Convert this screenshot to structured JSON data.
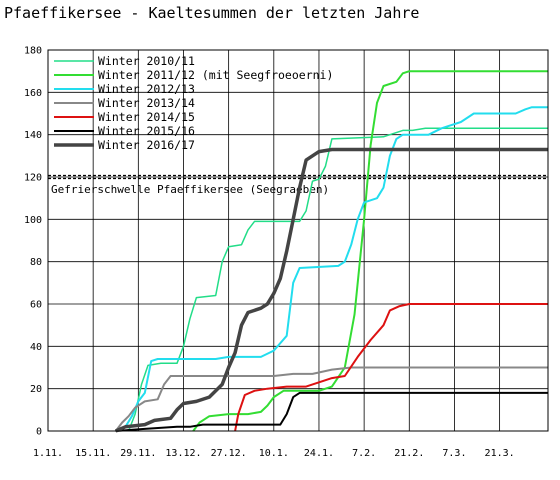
{
  "chart_data": {
    "type": "line",
    "title": "Pfaeffikersee - Kaeltesummen der letzten Jahre",
    "xlabel": "",
    "ylabel": "",
    "ylim": [
      0,
      180
    ],
    "yticks": [
      0,
      20,
      40,
      60,
      80,
      100,
      120,
      140,
      160,
      180
    ],
    "x_unit": "days since 1 November",
    "xlim": [
      0,
      155
    ],
    "xtick_labels": [
      "1.11.",
      "15.11.",
      "29.11.",
      "13.12.",
      "27.12.",
      "10.1.",
      "24.1.",
      "7.2.",
      "21.2.",
      "7.3.",
      "21.3."
    ],
    "xtick_values": [
      0,
      14,
      28,
      42,
      56,
      70,
      84,
      98,
      112,
      126,
      140
    ],
    "grid": true,
    "legend_position": "top-left",
    "threshold": {
      "value": 120,
      "label": "Gefrierschwelle Pfaeffikersee (Seegraeben)",
      "color": "#000000"
    },
    "series": [
      {
        "name": "Winter 2010/11",
        "color": "#22dd88",
        "width": 1.5,
        "points": [
          [
            25,
            0
          ],
          [
            27,
            8
          ],
          [
            29,
            22
          ],
          [
            31,
            31
          ],
          [
            35,
            32
          ],
          [
            40,
            32
          ],
          [
            42,
            40
          ],
          [
            44,
            53
          ],
          [
            46,
            63
          ],
          [
            52,
            64
          ],
          [
            54,
            80
          ],
          [
            56,
            87
          ],
          [
            60,
            88
          ],
          [
            62,
            95
          ],
          [
            64,
            99
          ],
          [
            78,
            99
          ],
          [
            80,
            104
          ],
          [
            82,
            118
          ],
          [
            84,
            119
          ],
          [
            86,
            125
          ],
          [
            88,
            138
          ],
          [
            104,
            139
          ],
          [
            106,
            140
          ],
          [
            110,
            142
          ],
          [
            113,
            142
          ],
          [
            117,
            143
          ],
          [
            155,
            143
          ]
        ]
      },
      {
        "name": "Winter 2011/12 (mit Seegfroeoerni)",
        "color": "#33dd33",
        "width": 2,
        "points": [
          [
            45,
            0
          ],
          [
            47,
            4
          ],
          [
            50,
            7
          ],
          [
            56,
            8
          ],
          [
            62,
            8
          ],
          [
            66,
            9
          ],
          [
            68,
            12
          ],
          [
            70,
            16
          ],
          [
            73,
            19
          ],
          [
            84,
            19
          ],
          [
            88,
            21
          ],
          [
            92,
            30
          ],
          [
            95,
            55
          ],
          [
            98,
            100
          ],
          [
            100,
            135
          ],
          [
            102,
            155
          ],
          [
            104,
            163
          ],
          [
            108,
            165
          ],
          [
            110,
            169
          ],
          [
            112,
            170
          ],
          [
            155,
            170
          ]
        ]
      },
      {
        "name": "Winter 2012/13",
        "color": "#22ddee",
        "width": 2,
        "points": [
          [
            21,
            0
          ],
          [
            24,
            2
          ],
          [
            26,
            7
          ],
          [
            28,
            14
          ],
          [
            30,
            18
          ],
          [
            32,
            33
          ],
          [
            34,
            34
          ],
          [
            52,
            34
          ],
          [
            56,
            35
          ],
          [
            66,
            35
          ],
          [
            70,
            38
          ],
          [
            74,
            45
          ],
          [
            76,
            70
          ],
          [
            78,
            77
          ],
          [
            90,
            78
          ],
          [
            92,
            80
          ],
          [
            94,
            88
          ],
          [
            96,
            100
          ],
          [
            98,
            108
          ],
          [
            102,
            110
          ],
          [
            104,
            115
          ],
          [
            106,
            130
          ],
          [
            108,
            138
          ],
          [
            110,
            140
          ],
          [
            118,
            140
          ],
          [
            122,
            143
          ],
          [
            128,
            146
          ],
          [
            132,
            150
          ],
          [
            145,
            150
          ],
          [
            148,
            152
          ],
          [
            150,
            153
          ],
          [
            155,
            153
          ]
        ]
      },
      {
        "name": "Winter 2013/14",
        "color": "#888888",
        "width": 2,
        "points": [
          [
            21,
            0
          ],
          [
            23,
            4
          ],
          [
            25,
            7
          ],
          [
            27,
            11
          ],
          [
            30,
            14
          ],
          [
            34,
            15
          ],
          [
            36,
            22
          ],
          [
            38,
            26
          ],
          [
            44,
            26
          ],
          [
            56,
            26
          ],
          [
            70,
            26
          ],
          [
            76,
            27
          ],
          [
            82,
            27
          ],
          [
            88,
            29
          ],
          [
            94,
            30
          ],
          [
            155,
            30
          ]
        ]
      },
      {
        "name": "Winter 2014/15",
        "color": "#dd1111",
        "width": 2,
        "points": [
          [
            58,
            0
          ],
          [
            59,
            8
          ],
          [
            61,
            17
          ],
          [
            64,
            19
          ],
          [
            68,
            20
          ],
          [
            74,
            21
          ],
          [
            80,
            21
          ],
          [
            84,
            23
          ],
          [
            88,
            25
          ],
          [
            92,
            26
          ],
          [
            96,
            35
          ],
          [
            100,
            43
          ],
          [
            104,
            50
          ],
          [
            106,
            57
          ],
          [
            109,
            59
          ],
          [
            112,
            60
          ],
          [
            155,
            60
          ]
        ]
      },
      {
        "name": "Winter 2015/16",
        "color": "#000000",
        "width": 2,
        "points": [
          [
            21,
            0
          ],
          [
            30,
            1
          ],
          [
            40,
            2
          ],
          [
            44,
            2
          ],
          [
            48,
            3
          ],
          [
            60,
            3
          ],
          [
            72,
            3
          ],
          [
            74,
            8
          ],
          [
            76,
            16
          ],
          [
            78,
            18
          ],
          [
            84,
            18
          ],
          [
            155,
            18
          ]
        ]
      },
      {
        "name": "Winter 2016/17",
        "color": "#444444",
        "width": 3.5,
        "points": [
          [
            21,
            0
          ],
          [
            24,
            2
          ],
          [
            30,
            3
          ],
          [
            33,
            5
          ],
          [
            38,
            6
          ],
          [
            40,
            10
          ],
          [
            42,
            13
          ],
          [
            46,
            14
          ],
          [
            50,
            16
          ],
          [
            54,
            22
          ],
          [
            56,
            30
          ],
          [
            58,
            37
          ],
          [
            60,
            50
          ],
          [
            62,
            56
          ],
          [
            66,
            58
          ],
          [
            68,
            60
          ],
          [
            70,
            65
          ],
          [
            72,
            72
          ],
          [
            74,
            85
          ],
          [
            76,
            100
          ],
          [
            78,
            115
          ],
          [
            80,
            128
          ],
          [
            84,
            132
          ],
          [
            88,
            133
          ],
          [
            155,
            133
          ]
        ]
      }
    ]
  }
}
